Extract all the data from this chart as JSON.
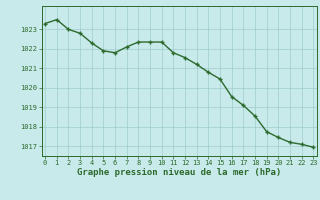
{
  "x": [
    0,
    1,
    2,
    3,
    4,
    5,
    6,
    7,
    8,
    9,
    10,
    11,
    12,
    13,
    14,
    15,
    16,
    17,
    18,
    19,
    20,
    21,
    22,
    23
  ],
  "y": [
    1023.3,
    1023.5,
    1023.0,
    1022.8,
    1022.3,
    1021.9,
    1021.8,
    1022.1,
    1022.35,
    1022.35,
    1022.35,
    1021.8,
    1021.55,
    1021.2,
    1020.8,
    1020.45,
    1019.55,
    1019.1,
    1018.55,
    1017.75,
    1017.45,
    1017.2,
    1017.1,
    1016.95
  ],
  "line_color": "#2d6a2d",
  "marker": "+",
  "background_color": "#c8eaea",
  "grid_color": "#a0cccc",
  "xlabel": "Graphe pression niveau de la mer (hPa)",
  "xlabel_fontsize": 6.5,
  "ylim": [
    1016.5,
    1024.2
  ],
  "yticks": [
    1017,
    1018,
    1019,
    1020,
    1021,
    1022,
    1023
  ],
  "xticks": [
    0,
    1,
    2,
    3,
    4,
    5,
    6,
    7,
    8,
    9,
    10,
    11,
    12,
    13,
    14,
    15,
    16,
    17,
    18,
    19,
    20,
    21,
    22,
    23
  ],
  "tick_fontsize": 5.0,
  "line_width": 1.0,
  "marker_size": 3.5,
  "marker_edge_width": 1.0
}
